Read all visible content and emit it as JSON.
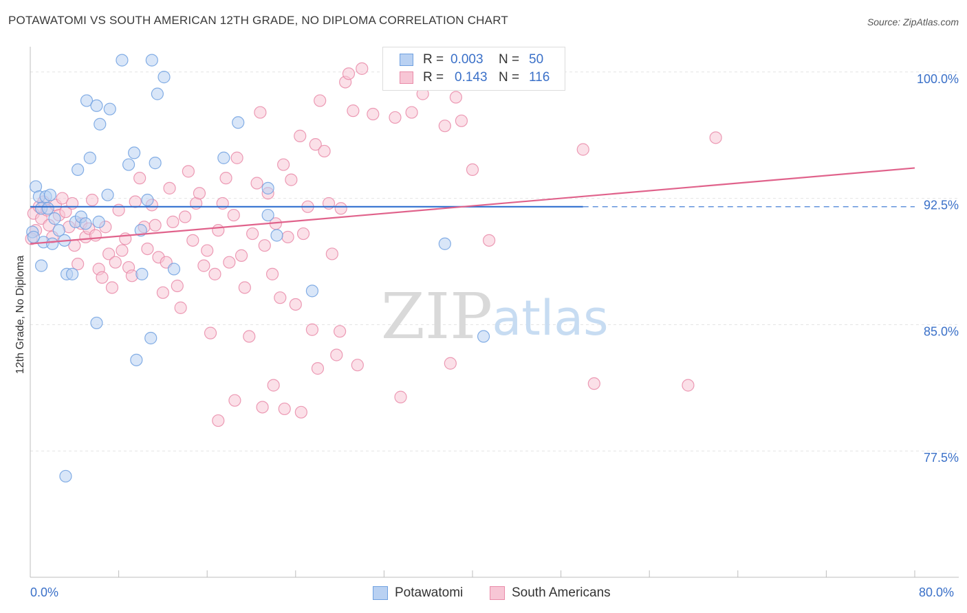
{
  "header": {
    "title": "POTAWATOMI VS SOUTH AMERICAN 12TH GRADE, NO DIPLOMA CORRELATION CHART",
    "source": "Source: ZipAtlas.com"
  },
  "watermark": {
    "zip": "ZIP",
    "atlas": "atlas"
  },
  "legend": {
    "r_label": "R =",
    "n_label": "N =",
    "series": [
      {
        "r": "0.003",
        "n": "50",
        "color": "#6ea0e0",
        "fill": "#b9d1f2"
      },
      {
        "r": "0.143",
        "n": "116",
        "color": "#e98aa8",
        "fill": "#f7c6d5"
      }
    ]
  },
  "bottom_legend": [
    "Potawatomi",
    "South Americans"
  ],
  "x_axis_labels": {
    "min": "0.0%",
    "max": "80.0%"
  },
  "chart_data": {
    "type": "scatter",
    "title": "POTAWATOMI VS SOUTH AMERICAN 12TH GRADE, NO DIPLOMA CORRELATION CHART",
    "xlabel": "",
    "ylabel": "12th Grade, No Diploma",
    "xlim": [
      0,
      80
    ],
    "ylim": [
      70,
      101.5
    ],
    "y_ticks": [
      {
        "value": 100.0,
        "label": "100.0%"
      },
      {
        "value": 92.5,
        "label": "92.5%"
      },
      {
        "value": 85.0,
        "label": "85.0%"
      },
      {
        "value": 77.5,
        "label": "77.5%"
      }
    ],
    "grid": true,
    "legend_position": "top-center",
    "series": [
      {
        "name": "Potawatomi",
        "color": "#6ea0e0",
        "fill": "#b9d1f2",
        "trend": {
          "x0": 0,
          "y0": 92.0,
          "x1": 50,
          "y1": 92.0,
          "dashed_to": 80
        },
        "points": [
          [
            0.2,
            90.5
          ],
          [
            0.5,
            93.2
          ],
          [
            0.8,
            92.6
          ],
          [
            1.0,
            91.9
          ],
          [
            1.2,
            89.9
          ],
          [
            1.4,
            92.6
          ],
          [
            1.6,
            91.9
          ],
          [
            1.8,
            92.7
          ],
          [
            2.2,
            91.3
          ],
          [
            2.6,
            90.6
          ],
          [
            3.1,
            90.0
          ],
          [
            3.3,
            88.0
          ],
          [
            3.8,
            88.0
          ],
          [
            4.1,
            91.1
          ],
          [
            4.3,
            94.2
          ],
          [
            4.6,
            91.4
          ],
          [
            5.0,
            91.0
          ],
          [
            5.1,
            98.3
          ],
          [
            5.4,
            94.9
          ],
          [
            6.2,
            91.1
          ],
          [
            6.0,
            85.1
          ],
          [
            6.3,
            96.9
          ],
          [
            6.0,
            98.0
          ],
          [
            7.0,
            92.7
          ],
          [
            7.2,
            97.8
          ],
          [
            8.3,
            100.7
          ],
          [
            8.9,
            94.5
          ],
          [
            9.4,
            95.2
          ],
          [
            10.0,
            90.6
          ],
          [
            10.9,
            84.2
          ],
          [
            9.6,
            82.9
          ],
          [
            11.0,
            100.7
          ],
          [
            10.1,
            88.0
          ],
          [
            10.6,
            92.4
          ],
          [
            11.3,
            94.6
          ],
          [
            11.5,
            98.7
          ],
          [
            12.1,
            99.7
          ],
          [
            13.0,
            88.3
          ],
          [
            17.5,
            94.9
          ],
          [
            18.8,
            97.0
          ],
          [
            21.5,
            93.1
          ],
          [
            21.5,
            91.5
          ],
          [
            22.3,
            90.3
          ],
          [
            25.5,
            87.0
          ],
          [
            37.5,
            89.8
          ],
          [
            41.0,
            84.3
          ],
          [
            3.2,
            76.0
          ],
          [
            0.3,
            90.2
          ],
          [
            2.0,
            89.8
          ],
          [
            1.0,
            88.5
          ]
        ]
      },
      {
        "name": "South Americans",
        "color": "#e98aa8",
        "fill": "#f7c6d5",
        "trend": {
          "x0": 0,
          "y0": 89.8,
          "x1": 80,
          "y1": 94.3
        },
        "points": [
          [
            0.3,
            91.6
          ],
          [
            0.5,
            90.6
          ],
          [
            0.8,
            92.0
          ],
          [
            1.0,
            91.3
          ],
          [
            1.2,
            92.3
          ],
          [
            1.5,
            91.8
          ],
          [
            1.7,
            90.9
          ],
          [
            2.0,
            90.2
          ],
          [
            2.3,
            92.1
          ],
          [
            2.6,
            91.5
          ],
          [
            2.9,
            92.5
          ],
          [
            3.2,
            91.7
          ],
          [
            3.5,
            90.8
          ],
          [
            3.8,
            92.2
          ],
          [
            4.0,
            89.7
          ],
          [
            4.3,
            88.6
          ],
          [
            4.6,
            91.0
          ],
          [
            5.0,
            90.2
          ],
          [
            5.3,
            90.7
          ],
          [
            5.6,
            92.4
          ],
          [
            5.9,
            90.3
          ],
          [
            6.2,
            88.3
          ],
          [
            6.5,
            87.8
          ],
          [
            6.8,
            90.8
          ],
          [
            7.1,
            89.2
          ],
          [
            7.4,
            87.2
          ],
          [
            7.7,
            88.7
          ],
          [
            8.0,
            91.8
          ],
          [
            8.3,
            89.4
          ],
          [
            8.6,
            90.1
          ],
          [
            8.9,
            88.4
          ],
          [
            9.2,
            87.9
          ],
          [
            9.5,
            92.3
          ],
          [
            9.9,
            93.7
          ],
          [
            10.3,
            90.8
          ],
          [
            10.6,
            89.5
          ],
          [
            11.0,
            92.1
          ],
          [
            11.3,
            90.9
          ],
          [
            11.6,
            89.0
          ],
          [
            12.0,
            86.9
          ],
          [
            12.3,
            88.7
          ],
          [
            12.6,
            93.1
          ],
          [
            12.9,
            91.1
          ],
          [
            13.3,
            87.3
          ],
          [
            13.6,
            86.0
          ],
          [
            14.0,
            91.4
          ],
          [
            14.3,
            94.1
          ],
          [
            14.7,
            90.0
          ],
          [
            15.0,
            92.2
          ],
          [
            15.3,
            92.8
          ],
          [
            15.7,
            88.5
          ],
          [
            16.0,
            89.4
          ],
          [
            16.3,
            84.5
          ],
          [
            16.7,
            88.0
          ],
          [
            17.0,
            90.6
          ],
          [
            17.4,
            92.2
          ],
          [
            17.7,
            93.7
          ],
          [
            18.0,
            88.7
          ],
          [
            18.4,
            91.5
          ],
          [
            18.7,
            94.9
          ],
          [
            19.1,
            89.1
          ],
          [
            19.4,
            87.2
          ],
          [
            19.8,
            84.3
          ],
          [
            20.1,
            90.4
          ],
          [
            20.5,
            93.4
          ],
          [
            20.8,
            97.6
          ],
          [
            21.2,
            89.7
          ],
          [
            21.5,
            92.8
          ],
          [
            21.9,
            88.0
          ],
          [
            22.2,
            91.0
          ],
          [
            22.6,
            86.6
          ],
          [
            22.9,
            94.5
          ],
          [
            23.3,
            90.2
          ],
          [
            23.6,
            93.6
          ],
          [
            24.0,
            86.2
          ],
          [
            24.4,
            96.2
          ],
          [
            24.7,
            90.4
          ],
          [
            25.1,
            92.0
          ],
          [
            25.5,
            84.7
          ],
          [
            25.8,
            95.7
          ],
          [
            26.2,
            98.3
          ],
          [
            26.6,
            95.3
          ],
          [
            27.0,
            92.2
          ],
          [
            27.3,
            89.2
          ],
          [
            27.7,
            83.2
          ],
          [
            28.1,
            91.9
          ],
          [
            28.5,
            99.4
          ],
          [
            28.8,
            99.9
          ],
          [
            29.2,
            97.7
          ],
          [
            29.6,
            82.6
          ],
          [
            30.0,
            100.2
          ],
          [
            31.0,
            97.5
          ],
          [
            33.0,
            97.3
          ],
          [
            33.5,
            80.7
          ],
          [
            34.5,
            97.6
          ],
          [
            37.5,
            96.8
          ],
          [
            38.5,
            98.5
          ],
          [
            39.0,
            97.1
          ],
          [
            40.0,
            94.2
          ],
          [
            38.0,
            82.7
          ],
          [
            41.5,
            90.0
          ],
          [
            50.0,
            95.4
          ],
          [
            51.0,
            81.5
          ],
          [
            59.5,
            81.4
          ],
          [
            62.0,
            96.1
          ],
          [
            34.0,
            100.5
          ],
          [
            35.5,
            98.7
          ],
          [
            17.0,
            79.3
          ],
          [
            18.5,
            80.5
          ],
          [
            23.0,
            80.0
          ],
          [
            21.0,
            80.1
          ],
          [
            26.0,
            82.4
          ],
          [
            22.0,
            81.4
          ],
          [
            24.5,
            79.8
          ],
          [
            28.0,
            84.6
          ],
          [
            0.1,
            90.1
          ]
        ]
      }
    ]
  }
}
